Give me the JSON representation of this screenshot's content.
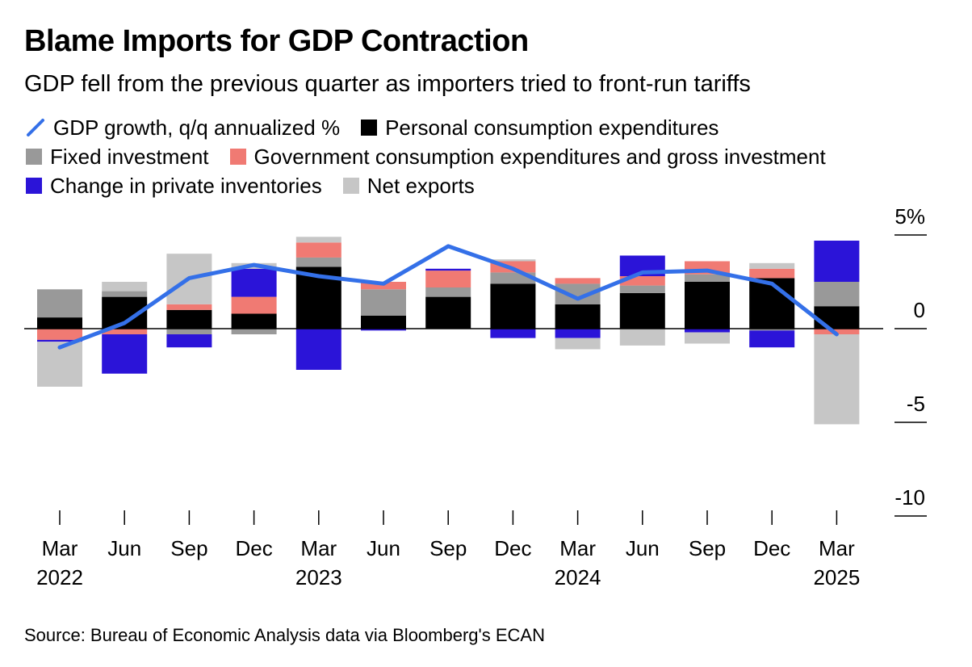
{
  "title": "Blame Imports for GDP Contraction",
  "subtitle": "GDP fell from the previous quarter as importers tried to front-run tariffs",
  "source": "Source: Bureau of Economic Analysis data via Bloomberg's ECAN",
  "colors": {
    "gdp_line": "#3470E8",
    "pce": "#000000",
    "fixed_investment": "#999999",
    "government": "#F07A73",
    "inventories": "#2B14D8",
    "net_exports": "#C6C6C6"
  },
  "legend": {
    "gdp": "GDP growth, q/q annualized %",
    "pce": "Personal consumption expenditures",
    "fixed": "Fixed investment",
    "gov": "Government consumption expenditures and gross investment",
    "inv": "Change in private inventories",
    "netx": "Net exports"
  },
  "chart_data": {
    "type": "bar",
    "stacked": true,
    "categories": [
      "Mar 2022",
      "Jun 2022",
      "Sep 2022",
      "Dec 2022",
      "Mar 2023",
      "Jun 2023",
      "Sep 2023",
      "Dec 2023",
      "Mar 2024",
      "Jun 2024",
      "Sep 2024",
      "Dec 2024",
      "Mar 2025"
    ],
    "x_tick_labels": [
      {
        "month": "Mar",
        "year": "2022"
      },
      {
        "month": "Jun",
        "year": ""
      },
      {
        "month": "Sep",
        "year": ""
      },
      {
        "month": "Dec",
        "year": ""
      },
      {
        "month": "Mar",
        "year": "2023"
      },
      {
        "month": "Jun",
        "year": ""
      },
      {
        "month": "Sep",
        "year": ""
      },
      {
        "month": "Dec",
        "year": ""
      },
      {
        "month": "Mar",
        "year": "2024"
      },
      {
        "month": "Jun",
        "year": ""
      },
      {
        "month": "Sep",
        "year": ""
      },
      {
        "month": "Dec",
        "year": ""
      },
      {
        "month": "Mar",
        "year": "2025"
      }
    ],
    "series": [
      {
        "name": "Personal consumption expenditures",
        "key": "pce",
        "values": [
          0.6,
          1.7,
          1.0,
          0.8,
          3.3,
          0.7,
          1.7,
          2.4,
          1.3,
          1.9,
          2.5,
          2.7,
          1.2
        ]
      },
      {
        "name": "Fixed investment",
        "key": "fixed",
        "values": [
          1.5,
          0.3,
          -0.3,
          -0.3,
          0.5,
          1.4,
          0.5,
          0.6,
          1.1,
          0.4,
          0.4,
          -0.1,
          1.3
        ]
      },
      {
        "name": "Government consumption expenditures and gross investment",
        "key": "gov",
        "values": [
          -0.6,
          -0.3,
          0.3,
          0.9,
          0.8,
          0.4,
          0.9,
          0.6,
          0.3,
          0.5,
          0.7,
          0.5,
          -0.3
        ]
      },
      {
        "name": "Change in private inventories",
        "key": "inv",
        "values": [
          -0.1,
          -2.1,
          -0.7,
          1.5,
          -2.2,
          -0.1,
          0.1,
          -0.5,
          -0.5,
          1.1,
          -0.2,
          -0.9,
          2.2
        ]
      },
      {
        "name": "Net exports",
        "key": "netx",
        "values": [
          -2.4,
          0.5,
          2.7,
          0.3,
          0.3,
          0.0,
          0.0,
          0.1,
          -0.6,
          -0.9,
          -0.6,
          0.3,
          -4.8
        ]
      }
    ],
    "line": {
      "name": "GDP growth, q/q annualized %",
      "values": [
        -1.0,
        0.3,
        2.7,
        3.4,
        2.8,
        2.4,
        4.4,
        3.2,
        1.6,
        3.0,
        3.1,
        2.4,
        -0.3
      ]
    },
    "y_ticks": [
      {
        "value": 5,
        "label": "5%"
      },
      {
        "value": 0,
        "label": "0"
      },
      {
        "value": -5,
        "label": "-5"
      },
      {
        "value": -10,
        "label": "-10"
      }
    ],
    "ylim": [
      -10,
      5
    ],
    "legend_position": "top"
  }
}
